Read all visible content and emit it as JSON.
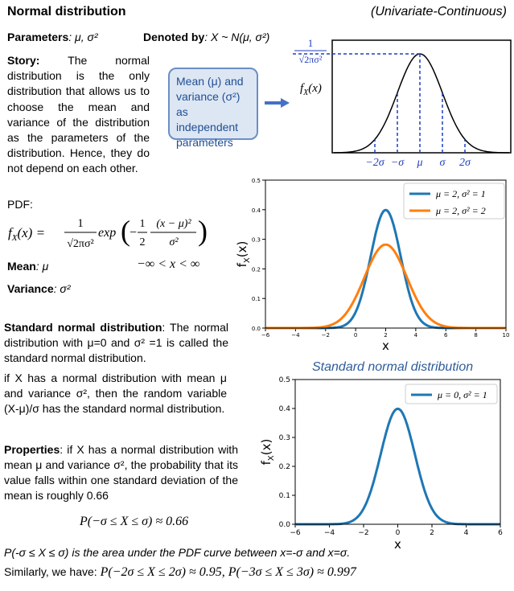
{
  "header": {
    "title": "Normal distribution",
    "subtitle": "(Univariate-Continuous)"
  },
  "parameters": {
    "label": "Parameters",
    "value": ": μ, σ²"
  },
  "denoted": {
    "label": "Denoted by",
    "value": ": X ~ N(μ, σ²)"
  },
  "story": {
    "label": "Story:",
    "text": " The normal distribution is the only distribution that allows us to choose the mean and variance of the distribution as the parameters of the distribution. Hence, they do not depend on each other."
  },
  "callout": {
    "text": "Mean (μ) and variance (σ²) as independent parameters"
  },
  "diagram": {
    "peak_label_num": "1",
    "peak_label_den": "√2πσ²",
    "fx_label": "fX(x)",
    "ticks": [
      "−2σ",
      "−σ",
      "μ",
      "σ",
      "2σ"
    ]
  },
  "pdf": {
    "label": "PDF:",
    "lhs": "fX(x) =",
    "frac_num": "1",
    "frac_den": "√2πσ²",
    "exp_word": "exp",
    "inner_num1": "1",
    "inner_den1": "2",
    "inner_num2": "(x − μ)²",
    "inner_den2": "σ²",
    "domain": "−∞ < x < ∞"
  },
  "mean": {
    "label": "Mean",
    "value": ": μ"
  },
  "variance": {
    "label": "Variance",
    "value": ": σ²"
  },
  "std_normal": {
    "label": "Standard normal distribution",
    "text": ": The normal distribution with μ=0 and σ² =1 is called the standard normal distribution."
  },
  "if_text": "if X has a normal distribution with mean μ and variance σ², then the random variable (X-μ)/σ has the standard normal distribution.",
  "properties": {
    "label": "Properties",
    "text": ": if X has a normal distribution with mean μ and variance σ², the probability that its value falls within one standard deviation of the mean is roughly 0.66"
  },
  "prob_eq": "P(−σ ≤ X ≤ σ) ≈ 0.66",
  "area_text": "P(-σ ≤ X ≤ σ) is the area under the PDF curve between x=-σ and x=σ.",
  "similarly_text": "Similarly, we have:",
  "similarly_eq": "P(−2σ ≤ X ≤ 2σ) ≈ 0.95,  P(−3σ ≤ X ≤ 3σ) ≈ 0.997",
  "std_chart_title": "Standard normal distribution",
  "colors": {
    "blue": "#1f77b4",
    "orange": "#ff7f0e",
    "callout_bg": "#dde6f3",
    "callout_border": "#6b8ec6",
    "arrow": "#4472c4",
    "diagram_blue": "#1f3fbf"
  },
  "chart_data": [
    {
      "type": "line",
      "xlabel": "x",
      "ylabel": "fX(x)",
      "xlim": [
        -6,
        10
      ],
      "ylim": [
        0,
        0.5
      ],
      "xticks": [
        -6,
        -4,
        -2,
        0,
        2,
        4,
        6,
        8,
        10
      ],
      "yticks": [
        0.0,
        0.1,
        0.2,
        0.3,
        0.4,
        0.5
      ],
      "legend_position": "top-right",
      "series": [
        {
          "name": "μ = 2, σ² = 1",
          "mu": 2,
          "sigma": 1,
          "color": "#1f77b4"
        },
        {
          "name": "μ = 2, σ² = 2",
          "mu": 2,
          "sigma": 1.4142,
          "color": "#ff7f0e"
        }
      ]
    },
    {
      "type": "line",
      "title": "Standard normal distribution",
      "xlabel": "x",
      "ylabel": "fX(x)",
      "xlim": [
        -6,
        6
      ],
      "ylim": [
        0,
        0.5
      ],
      "xticks": [
        -6,
        -4,
        -2,
        0,
        2,
        4,
        6
      ],
      "yticks": [
        0.0,
        0.1,
        0.2,
        0.3,
        0.4,
        0.5
      ],
      "legend_position": "top-right",
      "series": [
        {
          "name": "μ = 0, σ² = 1",
          "mu": 0,
          "sigma": 1,
          "color": "#1f77b4"
        }
      ]
    }
  ]
}
